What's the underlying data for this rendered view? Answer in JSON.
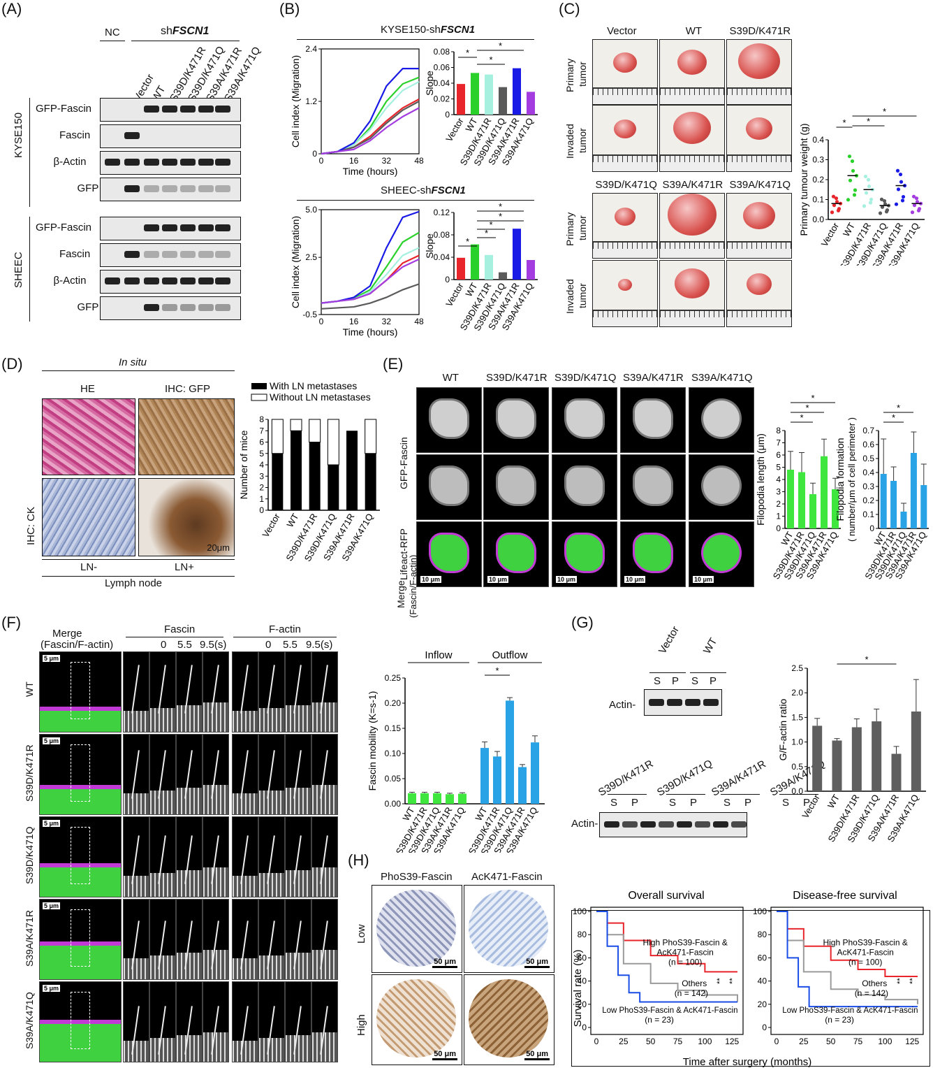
{
  "panels": {
    "A": "(A)",
    "B": "(B)",
    "C": "(C)",
    "D": "(D)",
    "E": "(E)",
    "F": "(F)",
    "G": "(G)",
    "H": "(H)"
  },
  "panelA": {
    "nc": "NC",
    "sh_prefix": "sh",
    "sh_gene": "FSCN1",
    "lanes": [
      "Vector",
      "WT",
      "S39D/K471R",
      "S39D/K471Q",
      "S39A/K471R",
      "S39A/K471Q"
    ],
    "cell_lines": [
      "KYSE150",
      "SHEEC"
    ],
    "blots": [
      "GFP-Fascin",
      "Fascin",
      "β-Actin",
      "GFP"
    ]
  },
  "groups": [
    "Vector",
    "WT",
    "S39D/K471R",
    "S39D/K471Q",
    "S39A/K471R",
    "S39A/K471Q"
  ],
  "group_colors": [
    "#e8252b",
    "#2bd12b",
    "#a6f0e0",
    "#5a5a5a",
    "#1a1ae6",
    "#a43de0"
  ],
  "panelB": {
    "top_prefix": "KYSE150-sh",
    "gene": "FSCN1",
    "bot_prefix": "SHEEC-sh",
    "ylabel": "Cell index (Migration)",
    "xlabel": "Time (hours)",
    "slope_label": "Slope",
    "top_xticks": [
      "0",
      "16",
      "32",
      "48"
    ],
    "top_yticks": [
      "0",
      "1.2",
      "2.4"
    ],
    "bot_yticks": [
      "-0.5",
      "2.5",
      "5.0"
    ],
    "top_slope_ticks": [
      "0",
      "0.02",
      "0.04",
      "0.06",
      "0.08"
    ],
    "bot_slope_ticks": [
      "0",
      "0.04",
      "0.08",
      "0.12"
    ],
    "star": "*"
  },
  "panelC": {
    "col_top": [
      "Vector",
      "WT",
      "S39D/K471R"
    ],
    "col_bot": [
      "S39D/K471Q",
      "S39A/K471R",
      "S39A/K471Q"
    ],
    "row_primary_1": "Primary",
    "row_primary_2": "tumor",
    "row_invaded_1": "Invaded",
    "row_invaded_2": "tumor",
    "ylabel": "Primary tumour weight (g)",
    "yticks": [
      "0.0",
      "0.1",
      "0.2",
      "0.3",
      "0.4"
    ]
  },
  "panelD": {
    "in_situ": "In situ",
    "he": "HE",
    "ihc_gfp": "IHC: GFP",
    "ihc_ck": "IHC: CK",
    "ln_minus": "LN-",
    "ln_plus": "LN+",
    "lymph_node": "Lymph node",
    "scale": "20μm",
    "legend_with": "With LN metastases",
    "legend_without": "Without LN metastases",
    "ylabel": "Number of mice",
    "yticks": [
      "0",
      "1",
      "2",
      "3",
      "4",
      "5",
      "6",
      "7",
      "8"
    ]
  },
  "panelE": {
    "cols": [
      "WT",
      "S39D/K471R",
      "S39D/K471Q",
      "S39A/K471R",
      "S39A/K471Q"
    ],
    "row1": "GFP-Fascin",
    "row2": "Lifeact-RFP",
    "row3_a": "Merge",
    "row3_b": "(Fascin/F-actin)",
    "scale": "10 μm",
    "len_ylabel": "Filopodia length (μm)",
    "len_yticks": [
      "0",
      "1",
      "2",
      "3",
      "4",
      "5",
      "6",
      "7",
      "8"
    ],
    "form_ylabel_1": "Filopodia formation",
    "form_ylabel_2": "( number/μm of cell perimeter )",
    "form_yticks": [
      "0",
      "0.1",
      "0.2",
      "0.3",
      "0.4",
      "0.5",
      "0.6",
      "0.7"
    ]
  },
  "panelF": {
    "merge": "Merge",
    "merge_sub": "(Fascin/F-actin)",
    "fascin": "Fascin",
    "factin": "F-actin",
    "times": [
      "0",
      "5.5",
      "9.5(s)"
    ],
    "rows": [
      "WT",
      "S39D/K471R",
      "S39D/K471Q",
      "S39A/K471R",
      "S39A/K471Q"
    ],
    "scale": "5 μm",
    "inflow": "Inflow",
    "outflow": "Outflow",
    "ylabel": "Fascin mobility (K=s-1)",
    "yticks": [
      "0.00",
      "0.05",
      "0.10",
      "0.15",
      "0.20",
      "0.25"
    ]
  },
  "panelG": {
    "top_lanes": [
      "Vector",
      "WT"
    ],
    "bot_lanes": [
      "S39D/K471R",
      "S39D/K471Q",
      "S39A/K471R",
      "S39A/K471Q"
    ],
    "s": "S",
    "p": "P",
    "actin": "Actin-",
    "ylabel": "G/F-actin ratio",
    "yticks": [
      "0.0",
      "0.5",
      "1.0",
      "1.5",
      "2.0",
      "2.5"
    ]
  },
  "panelH": {
    "phos": "PhoS39-Fascin",
    "ack": "AcK471-Fascin",
    "low": "Low",
    "high": "High",
    "scale": "50 μm",
    "os_title": "Overall survival",
    "dfs_title": "Disease-free survival",
    "ylabel": "Survival rate (%)",
    "xlabel": "Time after surgery (months)",
    "high_label_1": "High PhoS39-Fascin &",
    "high_label_2": "AcK471-Fascin",
    "high_n": "(n = 100)",
    "others": "Others",
    "others_n": "(n = 142)",
    "low_label": "Low PhoS39-Fascin & AcK471-Fascin",
    "low_n": "(n = 23)",
    "sig": "**",
    "xticks": [
      "0",
      "25",
      "50",
      "75",
      "100",
      "125"
    ],
    "yticks": [
      "0",
      "20",
      "40",
      "60",
      "80",
      "100"
    ]
  },
  "chart_data": [
    {
      "type": "bar",
      "id": "B-top-slope",
      "categories": [
        "Vector",
        "WT",
        "S39D/K471R",
        "S39D/K471Q",
        "S39A/K471R",
        "S39A/K471Q"
      ],
      "values": [
        0.039,
        0.053,
        0.051,
        0.035,
        0.059,
        0.029
      ],
      "ylabel": "Slope",
      "ylim": [
        0,
        0.08
      ]
    },
    {
      "type": "bar",
      "id": "B-bottom-slope",
      "categories": [
        "Vector",
        "WT",
        "S39D/K471R",
        "S39D/K471Q",
        "S39A/K471R",
        "S39A/K471Q"
      ],
      "values": [
        0.039,
        0.063,
        0.044,
        0.013,
        0.091,
        0.035
      ],
      "ylabel": "Slope",
      "ylim": [
        0,
        0.12
      ]
    },
    {
      "type": "line",
      "id": "B-top-migration",
      "x": [
        0,
        8,
        16,
        24,
        32,
        40,
        48
      ],
      "series": [
        {
          "name": "Vector",
          "values": [
            0,
            0.05,
            0.15,
            0.4,
            0.75,
            1.05,
            1.25
          ]
        },
        {
          "name": "WT",
          "values": [
            0,
            0.05,
            0.2,
            0.6,
            1.2,
            1.6,
            1.75
          ]
        },
        {
          "name": "S39D/K471R",
          "values": [
            0,
            0.05,
            0.2,
            0.55,
            1.05,
            1.45,
            1.65
          ]
        },
        {
          "name": "S39D/K471Q",
          "values": [
            0,
            0.05,
            0.15,
            0.35,
            0.7,
            1.0,
            1.2
          ]
        },
        {
          "name": "S39A/K471R",
          "values": [
            0,
            0.05,
            0.25,
            0.75,
            1.55,
            1.95,
            1.95
          ]
        },
        {
          "name": "S39A/K471Q",
          "values": [
            0,
            0.05,
            0.1,
            0.3,
            0.6,
            0.85,
            1.05
          ]
        }
      ],
      "xlabel": "Time (hours)",
      "ylabel": "Cell index (Migration)",
      "ylim": [
        0,
        2.4
      ]
    },
    {
      "type": "line",
      "id": "B-bottom-migration",
      "x": [
        0,
        8,
        16,
        24,
        32,
        40,
        48
      ],
      "series": [
        {
          "name": "Vector",
          "values": [
            0.1,
            0.2,
            0.3,
            0.6,
            1.3,
            2.2,
            2.6
          ]
        },
        {
          "name": "WT",
          "values": [
            0.1,
            0.2,
            0.35,
            0.8,
            2.0,
            3.3,
            3.8
          ]
        },
        {
          "name": "S39D/K471R",
          "values": [
            0.1,
            0.2,
            0.3,
            0.7,
            1.6,
            2.6,
            3.0
          ]
        },
        {
          "name": "S39D/K471Q",
          "values": [
            -0.2,
            -0.15,
            -0.1,
            0.1,
            0.4,
            0.8,
            1.1
          ]
        },
        {
          "name": "S39A/K471R",
          "values": [
            0.1,
            0.2,
            0.4,
            1.0,
            3.0,
            4.6,
            4.9
          ]
        },
        {
          "name": "S39A/K471Q",
          "values": [
            0.1,
            0.2,
            0.3,
            0.6,
            1.3,
            2.0,
            2.4
          ]
        }
      ],
      "xlabel": "Time (hours)",
      "ylabel": "Cell index (Migration)",
      "ylim": [
        -0.5,
        5.0
      ]
    },
    {
      "type": "scatter",
      "id": "C-weight",
      "categories": [
        "Vector",
        "WT",
        "S39D/K471R",
        "S39D/K471Q",
        "S39A/K471R",
        "S39A/K471Q"
      ],
      "means": [
        0.08,
        0.22,
        0.15,
        0.07,
        0.17,
        0.08
      ],
      "ylabel": "Primary tumour weight (g)",
      "ylim": [
        0,
        0.4
      ]
    },
    {
      "type": "bar",
      "id": "D-mice",
      "categories": [
        "Vector",
        "WT",
        "S39D/K471R",
        "S39D/K471Q",
        "S39A/K471R",
        "S39A/K471Q"
      ],
      "series": [
        {
          "name": "With LN metastases",
          "values": [
            5,
            7,
            6,
            4,
            7,
            5
          ]
        },
        {
          "name": "Without LN metastases",
          "values": [
            3,
            1,
            2,
            4,
            0,
            3
          ]
        }
      ],
      "ylabel": "Number of mice",
      "ylim": [
        0,
        8
      ]
    },
    {
      "type": "bar",
      "id": "E-length",
      "categories": [
        "WT",
        "S39D/K471R",
        "S39D/K471Q",
        "S39A/K471R",
        "S39A/K471Q"
      ],
      "values": [
        4.8,
        4.6,
        2.8,
        5.9,
        3.2
      ],
      "errors": [
        1.5,
        1.6,
        0.9,
        1.4,
        0.9
      ],
      "ylabel": "Filopodia length (μm)",
      "ylim": [
        0,
        8
      ]
    },
    {
      "type": "bar",
      "id": "E-formation",
      "categories": [
        "WT",
        "S39D/K471R",
        "S39D/K471Q",
        "S39A/K471R",
        "S39A/K471Q"
      ],
      "values": [
        0.39,
        0.34,
        0.12,
        0.54,
        0.31
      ],
      "errors": [
        0.25,
        0.1,
        0.06,
        0.15,
        0.15
      ],
      "ylim": [
        0,
        0.7
      ]
    },
    {
      "type": "bar",
      "id": "F-mobility",
      "categories": [
        "WT",
        "S39D/K471R",
        "S39D/K471Q",
        "S39A/K471R",
        "S39A/K471Q"
      ],
      "series": [
        {
          "name": "Inflow",
          "values": [
            0.021,
            0.021,
            0.021,
            0.019,
            0.02
          ]
        },
        {
          "name": "Outflow",
          "values": [
            0.111,
            0.094,
            0.205,
            0.073,
            0.122
          ]
        }
      ],
      "ylabel": "Fascin mobility (K=s-1)",
      "ylim": [
        0,
        0.25
      ]
    },
    {
      "type": "bar",
      "id": "G-ratio",
      "categories": [
        "Vector",
        "WT",
        "S39D/K471R",
        "S39D/K471Q",
        "S39A/K471R",
        "S39A/K471Q"
      ],
      "values": [
        1.33,
        1.03,
        1.3,
        1.42,
        0.76,
        1.62
      ],
      "errors": [
        0.15,
        0.04,
        0.17,
        0.25,
        0.15,
        0.65
      ],
      "ylabel": "G/F-actin ratio",
      "ylim": [
        0,
        2.5
      ]
    },
    {
      "type": "line",
      "id": "H-os",
      "title": "Overall survival",
      "series": [
        {
          "name": "High PhoS39-Fascin & AcK471-Fascin",
          "x": [
            0,
            10,
            25,
            50,
            75,
            100,
            130
          ],
          "values": [
            100,
            90,
            75,
            62,
            55,
            48,
            48
          ]
        },
        {
          "name": "Others",
          "x": [
            0,
            10,
            25,
            50,
            75,
            100,
            130
          ],
          "values": [
            100,
            80,
            55,
            38,
            32,
            28,
            22
          ]
        },
        {
          "name": "Low PhoS39-Fascin & AcK471-Fascin",
          "x": [
            0,
            10,
            20,
            30,
            40,
            130
          ],
          "values": [
            100,
            70,
            45,
            30,
            22,
            22
          ]
        }
      ],
      "xlabel": "Time after surgery (months)",
      "ylabel": "Survival rate (%)",
      "xlim": [
        0,
        130
      ],
      "ylim": [
        0,
        100
      ]
    },
    {
      "type": "line",
      "id": "H-dfs",
      "title": "Disease-free survival",
      "series": [
        {
          "name": "High PhoS39-Fascin & AcK471-Fascin",
          "x": [
            0,
            10,
            25,
            50,
            75,
            100,
            130
          ],
          "values": [
            100,
            85,
            70,
            58,
            50,
            44,
            44
          ]
        },
        {
          "name": "Others",
          "x": [
            0,
            10,
            25,
            50,
            75,
            100,
            130
          ],
          "values": [
            100,
            75,
            48,
            33,
            28,
            24,
            20
          ]
        },
        {
          "name": "Low PhoS39-Fascin & AcK471-Fascin",
          "x": [
            0,
            10,
            20,
            30,
            130
          ],
          "values": [
            100,
            60,
            35,
            18,
            18
          ]
        }
      ],
      "xlabel": "Time after surgery (months)",
      "ylabel": "Survival rate (%)",
      "xlim": [
        0,
        130
      ],
      "ylim": [
        0,
        100
      ]
    }
  ]
}
